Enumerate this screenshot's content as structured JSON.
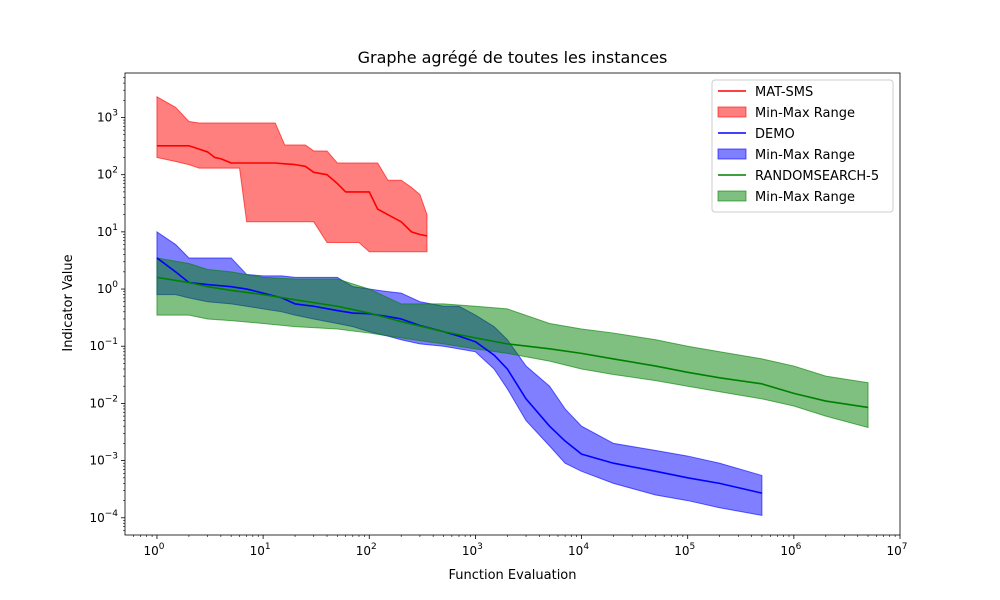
{
  "chart_data": {
    "type": "line",
    "title": "Graphe agrégé de toutes les instances",
    "xlabel": "Function Evaluation",
    "ylabel": "Indicator Value",
    "xscale": "log",
    "yscale": "log",
    "xlim": [
      0.5,
      10000000
    ],
    "ylim": [
      5e-05,
      6000
    ],
    "grid": false,
    "legend_position": "upper right",
    "xticks": [
      {
        "value": 1,
        "base": "10",
        "exp": "0"
      },
      {
        "value": 10,
        "base": "10",
        "exp": "1"
      },
      {
        "value": 100,
        "base": "10",
        "exp": "2"
      },
      {
        "value": 1000,
        "base": "10",
        "exp": "3"
      },
      {
        "value": 10000,
        "base": "10",
        "exp": "4"
      },
      {
        "value": 100000,
        "base": "10",
        "exp": "5"
      },
      {
        "value": 1000000,
        "base": "10",
        "exp": "6"
      },
      {
        "value": 10000000,
        "base": "10",
        "exp": "7"
      }
    ],
    "yticks": [
      {
        "value": 0.0001,
        "base": "10",
        "exp": "−4"
      },
      {
        "value": 0.001,
        "base": "10",
        "exp": "−3"
      },
      {
        "value": 0.01,
        "base": "10",
        "exp": "−2"
      },
      {
        "value": 0.1,
        "base": "10",
        "exp": "−1"
      },
      {
        "value": 1,
        "base": "10",
        "exp": "0"
      },
      {
        "value": 10,
        "base": "10",
        "exp": "1"
      },
      {
        "value": 100,
        "base": "10",
        "exp": "2"
      },
      {
        "value": 1000,
        "base": "10",
        "exp": "3"
      }
    ],
    "series": [
      {
        "name": "MAT-SMS",
        "range_name": "Min-Max Range",
        "color": "#ff0000",
        "fill_opacity": 0.5,
        "x": [
          1,
          1.5,
          2,
          2.5,
          3,
          3.5,
          4,
          5,
          6,
          7,
          8,
          10,
          13,
          16,
          20,
          25,
          30,
          40,
          50,
          60,
          70,
          80,
          100,
          120,
          150,
          200,
          250,
          300,
          350
        ],
        "y": [
          320,
          320,
          320,
          280,
          250,
          200,
          190,
          160,
          160,
          160,
          160,
          160,
          160,
          155,
          150,
          140,
          110,
          100,
          70,
          50,
          50,
          50,
          50,
          25,
          20,
          15,
          10,
          9,
          8.5
        ],
        "ymin": [
          200,
          170,
          150,
          130,
          130,
          130,
          130,
          130,
          130,
          15,
          15,
          15,
          15,
          15,
          15,
          15,
          15,
          6.5,
          6.5,
          6.5,
          6.5,
          6.5,
          4.5,
          4.5,
          4.5,
          4.5,
          4.5,
          4.5,
          4.5
        ],
        "ymax": [
          2300,
          1500,
          850,
          800,
          800,
          800,
          800,
          800,
          800,
          800,
          800,
          800,
          800,
          330,
          330,
          330,
          260,
          260,
          160,
          160,
          160,
          160,
          160,
          160,
          80,
          80,
          60,
          45,
          20
        ]
      },
      {
        "name": "DEMO",
        "range_name": "Min-Max Range",
        "color": "#0000ff",
        "fill_opacity": 0.5,
        "x": [
          1,
          1.5,
          2,
          3,
          5,
          7,
          10,
          15,
          20,
          30,
          50,
          70,
          100,
          150,
          200,
          300,
          500,
          700,
          1000,
          1500,
          2000,
          3000,
          5000,
          7000,
          10000,
          20000,
          50000,
          100000,
          200000,
          500000
        ],
        "y": [
          3.5,
          2,
          1.3,
          1.2,
          1.1,
          1.0,
          0.85,
          0.7,
          0.55,
          0.5,
          0.42,
          0.38,
          0.37,
          0.33,
          0.3,
          0.23,
          0.18,
          0.15,
          0.12,
          0.07,
          0.04,
          0.012,
          0.004,
          0.0022,
          0.0013,
          0.0009,
          0.00065,
          0.0005,
          0.0004,
          0.00027
        ],
        "ymin": [
          0.8,
          0.8,
          0.7,
          0.6,
          0.55,
          0.5,
          0.45,
          0.4,
          0.35,
          0.3,
          0.25,
          0.22,
          0.18,
          0.15,
          0.13,
          0.11,
          0.1,
          0.09,
          0.08,
          0.04,
          0.018,
          0.005,
          0.0018,
          0.0009,
          0.00065,
          0.0004,
          0.00025,
          0.0002,
          0.00015,
          0.00011
        ],
        "ymax": [
          10,
          6,
          3.5,
          3.5,
          3.5,
          1.8,
          1.7,
          1.7,
          1.6,
          1.6,
          1.6,
          1.1,
          1.0,
          0.9,
          0.85,
          0.6,
          0.5,
          0.5,
          0.35,
          0.22,
          0.13,
          0.045,
          0.02,
          0.008,
          0.004,
          0.002,
          0.0015,
          0.0012,
          0.0009,
          0.00055
        ]
      },
      {
        "name": "RANDOMSEARCH-5",
        "range_name": "Min-Max Range",
        "color": "#008000",
        "fill_opacity": 0.5,
        "x": [
          1,
          2,
          3,
          5,
          10,
          20,
          50,
          100,
          200,
          500,
          1000,
          2000,
          5000,
          10000,
          20000,
          50000,
          100000,
          200000,
          500000,
          1000000,
          2000000,
          5000000
        ],
        "y": [
          1.6,
          1.3,
          1.1,
          0.95,
          0.8,
          0.65,
          0.5,
          0.38,
          0.27,
          0.18,
          0.14,
          0.11,
          0.09,
          0.075,
          0.06,
          0.045,
          0.035,
          0.028,
          0.022,
          0.015,
          0.011,
          0.0085
        ],
        "ymin": [
          0.35,
          0.35,
          0.3,
          0.28,
          0.25,
          0.22,
          0.2,
          0.17,
          0.14,
          0.11,
          0.09,
          0.075,
          0.055,
          0.04,
          0.032,
          0.025,
          0.02,
          0.016,
          0.012,
          0.009,
          0.006,
          0.0038
        ],
        "ymax": [
          3.5,
          2.8,
          2.2,
          2.0,
          1.6,
          1.5,
          1.5,
          1.0,
          0.55,
          0.55,
          0.5,
          0.45,
          0.25,
          0.2,
          0.17,
          0.13,
          0.1,
          0.08,
          0.06,
          0.045,
          0.03,
          0.023
        ]
      }
    ]
  }
}
